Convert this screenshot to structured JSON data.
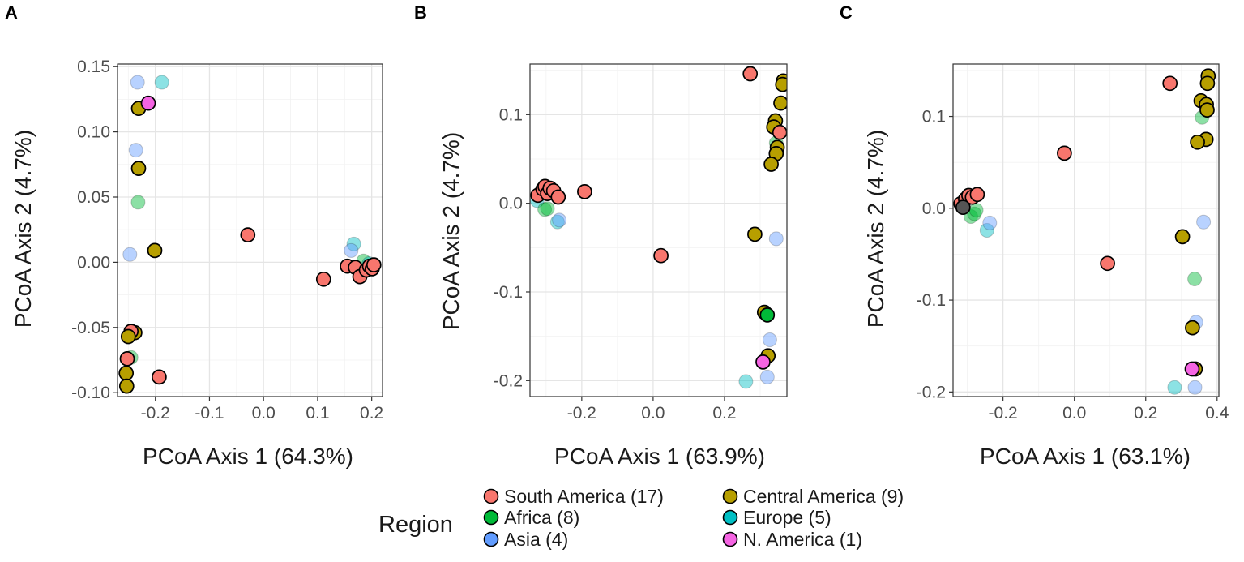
{
  "colors": {
    "South America": "#F8766D",
    "Central America": "#B79F00",
    "Africa": "#00BA38",
    "Europe": "#00BFC4",
    "Asia": "#619CFF",
    "N. America": "#F564E3"
  },
  "legend": {
    "title": "Region",
    "items": [
      {
        "label": "South America (17)",
        "color_key": "South America"
      },
      {
        "label": "Central America (9)",
        "color_key": "Central America"
      },
      {
        "label": "Africa (8)",
        "color_key": "Africa"
      },
      {
        "label": "Europe (5)",
        "color_key": "Europe"
      },
      {
        "label": "Asia (4)",
        "color_key": "Asia"
      },
      {
        "label": "N. America (1)",
        "color_key": "N. America"
      }
    ]
  },
  "chart_data": [
    {
      "type": "scatter",
      "panel_label": "A",
      "xlabel": "PCoA Axis 1 (64.3%)",
      "ylabel": "PCoA Axis 2 (4.7%)",
      "xlim": [
        -0.27,
        0.22
      ],
      "ylim": [
        -0.103,
        0.152
      ],
      "x_ticks": [
        -0.2,
        -0.1,
        0.0,
        0.1,
        0.2
      ],
      "x_tick_labels": [
        "-0.2",
        "-0.1",
        "0.0",
        "0.1",
        "0.2"
      ],
      "y_ticks": [
        -0.1,
        -0.05,
        0.0,
        0.05,
        0.1,
        0.15
      ],
      "y_tick_labels": [
        "-0.10",
        "-0.05",
        "0.00",
        "0.05",
        "0.10",
        "0.15"
      ],
      "points": [
        {
          "x": -0.233,
          "y": 0.138,
          "region": "Asia",
          "outlined": false
        },
        {
          "x": -0.188,
          "y": 0.138,
          "region": "Europe",
          "outlined": false
        },
        {
          "x": -0.231,
          "y": 0.118,
          "region": "Central America",
          "outlined": true
        },
        {
          "x": -0.213,
          "y": 0.122,
          "region": "N. America",
          "outlined": true
        },
        {
          "x": -0.236,
          "y": 0.086,
          "region": "Asia",
          "outlined": false
        },
        {
          "x": -0.231,
          "y": 0.072,
          "region": "Central America",
          "outlined": true
        },
        {
          "x": -0.232,
          "y": 0.046,
          "region": "Africa",
          "outlined": false
        },
        {
          "x": -0.201,
          "y": 0.009,
          "region": "Central America",
          "outlined": true
        },
        {
          "x": -0.247,
          "y": 0.006,
          "region": "Asia",
          "outlined": false
        },
        {
          "x": -0.029,
          "y": 0.021,
          "region": "South America",
          "outlined": true
        },
        {
          "x": 0.111,
          "y": -0.013,
          "region": "South America",
          "outlined": true
        },
        {
          "x": 0.167,
          "y": 0.014,
          "region": "Europe",
          "outlined": false
        },
        {
          "x": 0.162,
          "y": 0.009,
          "region": "Asia",
          "outlined": false
        },
        {
          "x": 0.185,
          "y": 0.001,
          "region": "Africa",
          "outlined": false
        },
        {
          "x": 0.195,
          "y": -0.001,
          "region": "Europe",
          "outlined": false
        },
        {
          "x": 0.155,
          "y": -0.003,
          "region": "South America",
          "outlined": true
        },
        {
          "x": 0.17,
          "y": -0.004,
          "region": "South America",
          "outlined": true
        },
        {
          "x": 0.178,
          "y": -0.011,
          "region": "South America",
          "outlined": true
        },
        {
          "x": 0.19,
          "y": -0.006,
          "region": "South America",
          "outlined": true
        },
        {
          "x": 0.196,
          "y": -0.003,
          "region": "South America",
          "outlined": true
        },
        {
          "x": 0.201,
          "y": -0.005,
          "region": "South America",
          "outlined": true
        },
        {
          "x": 0.204,
          "y": -0.002,
          "region": "South America",
          "outlined": true
        },
        {
          "x": -0.238,
          "y": -0.054,
          "region": "Central America",
          "outlined": true
        },
        {
          "x": -0.245,
          "y": -0.053,
          "region": "South America",
          "outlined": true
        },
        {
          "x": -0.25,
          "y": -0.057,
          "region": "Central America",
          "outlined": true
        },
        {
          "x": -0.245,
          "y": -0.073,
          "region": "Africa",
          "outlined": false
        },
        {
          "x": -0.252,
          "y": -0.074,
          "region": "South America",
          "outlined": true
        },
        {
          "x": -0.254,
          "y": -0.085,
          "region": "Central America",
          "outlined": true
        },
        {
          "x": -0.253,
          "y": -0.095,
          "region": "Central America",
          "outlined": true
        },
        {
          "x": -0.193,
          "y": -0.088,
          "region": "South America",
          "outlined": true
        }
      ]
    },
    {
      "type": "scatter",
      "panel_label": "B",
      "xlabel": "PCoA Axis 1 (63.9%)",
      "ylabel": "PCoA Axis 2 (4.7%)",
      "xlim": [
        -0.345,
        0.375
      ],
      "ylim": [
        -0.218,
        0.157
      ],
      "x_ticks": [
        -0.2,
        0.0,
        0.2
      ],
      "x_tick_labels": [
        "-0.2",
        "0.0",
        "0.2"
      ],
      "y_ticks": [
        -0.2,
        -0.1,
        0.0,
        0.1
      ],
      "y_tick_labels": [
        "-0.2",
        "-0.1",
        "0.0",
        "0.1"
      ],
      "points": [
        {
          "x": -0.325,
          "y": 0.003,
          "region": "Europe",
          "outlined": false
        },
        {
          "x": -0.304,
          "y": -0.007,
          "region": "Africa",
          "outlined": false
        },
        {
          "x": -0.296,
          "y": -0.006,
          "region": "Africa",
          "outlined": false
        },
        {
          "x": -0.268,
          "y": -0.021,
          "region": "Europe",
          "outlined": false
        },
        {
          "x": -0.263,
          "y": -0.019,
          "region": "Asia",
          "outlined": false
        },
        {
          "x": -0.323,
          "y": 0.009,
          "region": "South America",
          "outlined": true
        },
        {
          "x": -0.309,
          "y": 0.016,
          "region": "South America",
          "outlined": true
        },
        {
          "x": -0.303,
          "y": 0.019,
          "region": "South America",
          "outlined": true
        },
        {
          "x": -0.296,
          "y": 0.011,
          "region": "South America",
          "outlined": true
        },
        {
          "x": -0.289,
          "y": 0.017,
          "region": "South America",
          "outlined": true
        },
        {
          "x": -0.279,
          "y": 0.014,
          "region": "South America",
          "outlined": true
        },
        {
          "x": -0.266,
          "y": 0.007,
          "region": "South America",
          "outlined": true
        },
        {
          "x": -0.192,
          "y": 0.013,
          "region": "South America",
          "outlined": true
        },
        {
          "x": 0.022,
          "y": -0.059,
          "region": "South America",
          "outlined": true
        },
        {
          "x": 0.272,
          "y": 0.146,
          "region": "South America",
          "outlined": true
        },
        {
          "x": 0.365,
          "y": 0.138,
          "region": "Central America",
          "outlined": true
        },
        {
          "x": 0.363,
          "y": 0.134,
          "region": "Central America",
          "outlined": true
        },
        {
          "x": 0.358,
          "y": 0.113,
          "region": "Central America",
          "outlined": true
        },
        {
          "x": 0.343,
          "y": 0.093,
          "region": "Central America",
          "outlined": true
        },
        {
          "x": 0.338,
          "y": 0.086,
          "region": "Central America",
          "outlined": true
        },
        {
          "x": 0.355,
          "y": 0.08,
          "region": "South America",
          "outlined": true
        },
        {
          "x": 0.345,
          "y": 0.068,
          "region": "Africa",
          "outlined": false
        },
        {
          "x": 0.348,
          "y": 0.063,
          "region": "Central America",
          "outlined": true
        },
        {
          "x": 0.345,
          "y": 0.056,
          "region": "Central America",
          "outlined": true
        },
        {
          "x": 0.331,
          "y": 0.044,
          "region": "Central America",
          "outlined": true
        },
        {
          "x": 0.285,
          "y": -0.035,
          "region": "Central America",
          "outlined": true
        },
        {
          "x": 0.345,
          "y": -0.04,
          "region": "Asia",
          "outlined": false
        },
        {
          "x": 0.312,
          "y": -0.123,
          "region": "Central America",
          "outlined": true
        },
        {
          "x": 0.32,
          "y": -0.126,
          "region": "Africa",
          "outlined": true
        },
        {
          "x": 0.327,
          "y": -0.154,
          "region": "Asia",
          "outlined": false
        },
        {
          "x": 0.322,
          "y": -0.172,
          "region": "Central America",
          "outlined": true
        },
        {
          "x": 0.308,
          "y": -0.179,
          "region": "N. America",
          "outlined": true
        },
        {
          "x": 0.26,
          "y": -0.201,
          "region": "Europe",
          "outlined": false
        },
        {
          "x": 0.32,
          "y": -0.196,
          "region": "Asia",
          "outlined": false
        }
      ]
    },
    {
      "type": "scatter",
      "panel_label": "C",
      "xlabel": "PCoA Axis 1 (63.1%)",
      "ylabel": "PCoA Axis 2 (4.7%)",
      "xlim": [
        -0.34,
        0.405
      ],
      "ylim": [
        -0.205,
        0.157
      ],
      "x_ticks": [
        -0.2,
        0.0,
        0.2,
        0.4
      ],
      "x_tick_labels": [
        "-0.2",
        "0.0",
        "0.2",
        "0.4"
      ],
      "y_ticks": [
        -0.2,
        -0.1,
        0.0,
        0.1
      ],
      "y_tick_labels": [
        "-0.2",
        "-0.1",
        "0.0",
        "0.1"
      ],
      "points": [
        {
          "x": -0.29,
          "y": -0.009,
          "region": "Africa",
          "outlined": false
        },
        {
          "x": -0.28,
          "y": -0.006,
          "region": "Africa",
          "outlined": false
        },
        {
          "x": -0.275,
          "y": -0.002,
          "region": "Africa",
          "outlined": false
        },
        {
          "x": -0.245,
          "y": -0.024,
          "region": "Europe",
          "outlined": false
        },
        {
          "x": -0.237,
          "y": -0.016,
          "region": "Asia",
          "outlined": false
        },
        {
          "x": -0.318,
          "y": 0.005,
          "region": "South America",
          "outlined": true
        },
        {
          "x": -0.305,
          "y": 0.01,
          "region": "South America",
          "outlined": true
        },
        {
          "x": -0.296,
          "y": 0.014,
          "region": "South America",
          "outlined": true
        },
        {
          "x": -0.286,
          "y": 0.012,
          "region": "South America",
          "outlined": true
        },
        {
          "x": -0.272,
          "y": 0.015,
          "region": "South America",
          "outlined": true
        },
        {
          "x": -0.312,
          "y": 0.001,
          "region": "Black",
          "outlined": true
        },
        {
          "x": -0.028,
          "y": 0.06,
          "region": "South America",
          "outlined": true
        },
        {
          "x": 0.093,
          "y": -0.06,
          "region": "South America",
          "outlined": true
        },
        {
          "x": 0.268,
          "y": 0.136,
          "region": "South America",
          "outlined": true
        },
        {
          "x": 0.375,
          "y": 0.144,
          "region": "Central America",
          "outlined": true
        },
        {
          "x": 0.373,
          "y": 0.136,
          "region": "Central America",
          "outlined": true
        },
        {
          "x": 0.355,
          "y": 0.117,
          "region": "Central America",
          "outlined": true
        },
        {
          "x": 0.37,
          "y": 0.113,
          "region": "Central America",
          "outlined": true
        },
        {
          "x": 0.372,
          "y": 0.107,
          "region": "Central America",
          "outlined": true
        },
        {
          "x": 0.358,
          "y": 0.099,
          "region": "Africa",
          "outlined": false
        },
        {
          "x": 0.369,
          "y": 0.075,
          "region": "Central America",
          "outlined": true
        },
        {
          "x": 0.345,
          "y": 0.072,
          "region": "Central America",
          "outlined": true
        },
        {
          "x": 0.362,
          "y": -0.015,
          "region": "Asia",
          "outlined": false
        },
        {
          "x": 0.303,
          "y": -0.031,
          "region": "Central America",
          "outlined": true
        },
        {
          "x": 0.337,
          "y": -0.077,
          "region": "Africa",
          "outlined": false
        },
        {
          "x": 0.341,
          "y": -0.124,
          "region": "Asia",
          "outlined": false
        },
        {
          "x": 0.331,
          "y": -0.13,
          "region": "Central America",
          "outlined": true
        },
        {
          "x": 0.339,
          "y": -0.175,
          "region": "Central America",
          "outlined": true
        },
        {
          "x": 0.33,
          "y": -0.175,
          "region": "N. America",
          "outlined": true
        },
        {
          "x": 0.281,
          "y": -0.195,
          "region": "Europe",
          "outlined": false
        },
        {
          "x": 0.338,
          "y": -0.195,
          "region": "Asia",
          "outlined": false
        }
      ]
    }
  ]
}
